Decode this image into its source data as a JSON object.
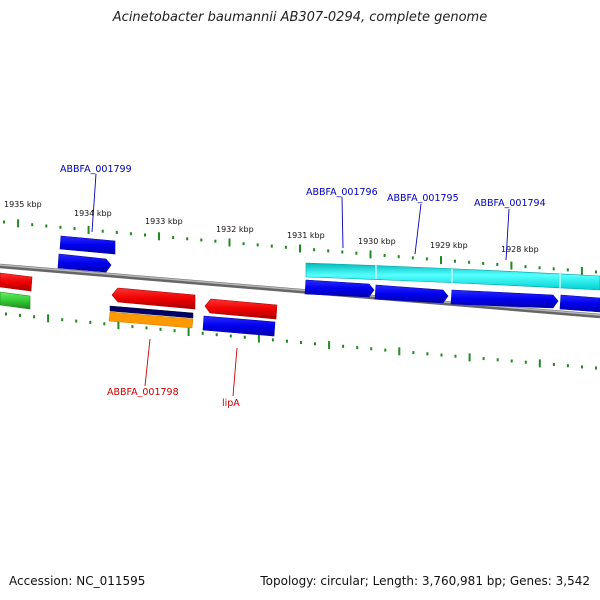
{
  "title": "Acinetobacter baumannii AB307-0294, complete genome",
  "footer": {
    "accession": "Accession: NC_011595",
    "stats": "Topology: circular; Length: 3,760,981 bp; Genes: 3,542"
  },
  "kbp_labels": [
    "1935 kbp",
    "1934 kbp",
    "1933 kbp",
    "1932 kbp",
    "1931 kbp",
    "1930 kbp",
    "1929 kbp",
    "1928 kbp"
  ],
  "gene_labels": {
    "abbfa_001799": "ABBFA_001799",
    "abbfa_001796": "ABBFA_001796",
    "abbfa_001795": "ABBFA_001795",
    "abbfa_001794": "ABBFA_001794",
    "abbfa_001798": "ABBFA_001798",
    "lipa": "lipA"
  },
  "colors": {
    "forward_gene": "#0000ee",
    "reverse_gene": "#ee0000",
    "cds_cyan": "#00e5e5",
    "rna_green": "#33cc33",
    "backbone": "#888888",
    "ticks": "#228822",
    "label_blue": "#0000bb",
    "label_red": "#cc0000"
  }
}
